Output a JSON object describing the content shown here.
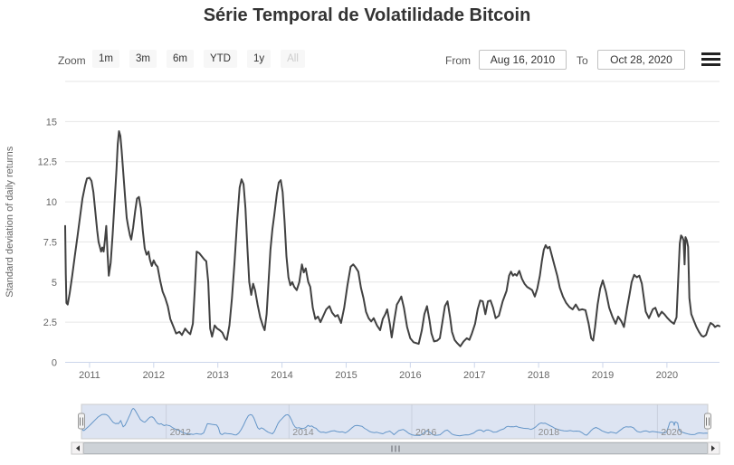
{
  "title": "Série Temporal de Volatilidade Bitcoin",
  "range_selector": {
    "zoom_label": "Zoom",
    "buttons": [
      {
        "label": "1m",
        "enabled": true
      },
      {
        "label": "3m",
        "enabled": true
      },
      {
        "label": "6m",
        "enabled": true
      },
      {
        "label": "YTD",
        "enabled": true
      },
      {
        "label": "1y",
        "enabled": true
      },
      {
        "label": "All",
        "enabled": false
      }
    ],
    "from_label": "From",
    "from_value": "Aug 16, 2010",
    "to_label": "To",
    "to_value": "Oct 28, 2020"
  },
  "menu_icon": "hamburger-menu",
  "colors": {
    "title": "#333333",
    "series_line": "#414141",
    "grid": "#e6e6e6",
    "axis_line": "#ccd6eb",
    "axis_label": "#666666",
    "navigator_line": "#6596c8",
    "navigator_mask": "rgba(102,133,194,0.22)",
    "navigator_outline": "#cccccc",
    "navigator_label": "#8c8c8c",
    "handle_fill": "#f2f2f2",
    "handle_stroke": "#999999",
    "scrollbar_thumb": "#cdd2d7",
    "scrollbar_thumb_border": "#b0b5ba",
    "scrollbar_button": "#f4f2f3",
    "scrollbar_button_border": "#c9c9c9",
    "scrollbar_arrow": "#333333",
    "button_bg": "#f7f7f7",
    "button_text": "#333333",
    "button_disabled_text": "#cccccc"
  },
  "chart_data": {
    "type": "line",
    "title": "Série Temporal de Volatilidade Bitcoin",
    "xlabel": "",
    "ylabel": "Standard deviation of daily returns",
    "ylim": [
      0,
      17.5
    ],
    "yticks": [
      0,
      2.5,
      5,
      7.5,
      10,
      12.5,
      15
    ],
    "xlim_years": [
      2010.62,
      2020.82
    ],
    "xticks_years": [
      2011,
      2012,
      2013,
      2014,
      2015,
      2016,
      2017,
      2018,
      2019,
      2020
    ],
    "x_range_dates": [
      "Aug 16, 2010",
      "Oct 28, 2020"
    ],
    "grid": "horizontal",
    "legend": "none",
    "navigator_ticks": [
      2012,
      2014,
      2016,
      2018,
      2020
    ],
    "points": [
      [
        2010.62,
        8.5
      ],
      [
        2010.63,
        5.5
      ],
      [
        2010.64,
        3.7
      ],
      [
        2010.66,
        3.6
      ],
      [
        2010.69,
        4.3
      ],
      [
        2010.73,
        5.4
      ],
      [
        2010.77,
        6.6
      ],
      [
        2010.81,
        7.8
      ],
      [
        2010.85,
        9.0
      ],
      [
        2010.89,
        10.2
      ],
      [
        2010.93,
        11.0
      ],
      [
        2010.96,
        11.45
      ],
      [
        2011.0,
        11.5
      ],
      [
        2011.03,
        11.3
      ],
      [
        2011.06,
        10.6
      ],
      [
        2011.09,
        9.4
      ],
      [
        2011.12,
        8.2
      ],
      [
        2011.14,
        7.5
      ],
      [
        2011.16,
        7.2
      ],
      [
        2011.18,
        6.9
      ],
      [
        2011.2,
        7.15
      ],
      [
        2011.22,
        6.9
      ],
      [
        2011.24,
        7.6
      ],
      [
        2011.26,
        8.5
      ],
      [
        2011.28,
        6.8
      ],
      [
        2011.3,
        5.4
      ],
      [
        2011.33,
        6.2
      ],
      [
        2011.36,
        8.0
      ],
      [
        2011.39,
        10.0
      ],
      [
        2011.42,
        12.0
      ],
      [
        2011.44,
        13.6
      ],
      [
        2011.46,
        14.4
      ],
      [
        2011.48,
        14.1
      ],
      [
        2011.5,
        13.2
      ],
      [
        2011.53,
        11.6
      ],
      [
        2011.56,
        10.0
      ],
      [
        2011.58,
        9.0
      ],
      [
        2011.6,
        8.5
      ],
      [
        2011.63,
        7.9
      ],
      [
        2011.65,
        7.65
      ],
      [
        2011.68,
        8.4
      ],
      [
        2011.71,
        9.4
      ],
      [
        2011.74,
        10.2
      ],
      [
        2011.77,
        10.3
      ],
      [
        2011.8,
        9.6
      ],
      [
        2011.83,
        8.2
      ],
      [
        2011.86,
        7.1
      ],
      [
        2011.89,
        6.7
      ],
      [
        2011.92,
        6.9
      ],
      [
        2011.94,
        6.4
      ],
      [
        2011.97,
        6.0
      ],
      [
        2012.0,
        6.35
      ],
      [
        2012.03,
        6.1
      ],
      [
        2012.06,
        5.95
      ],
      [
        2012.1,
        5.1
      ],
      [
        2012.14,
        4.4
      ],
      [
        2012.18,
        4.0
      ],
      [
        2012.22,
        3.5
      ],
      [
        2012.26,
        2.7
      ],
      [
        2012.31,
        2.2
      ],
      [
        2012.35,
        1.8
      ],
      [
        2012.4,
        1.9
      ],
      [
        2012.44,
        1.7
      ],
      [
        2012.49,
        2.1
      ],
      [
        2012.53,
        1.9
      ],
      [
        2012.57,
        1.75
      ],
      [
        2012.61,
        2.4
      ],
      [
        2012.64,
        4.5
      ],
      [
        2012.67,
        6.9
      ],
      [
        2012.71,
        6.8
      ],
      [
        2012.75,
        6.6
      ],
      [
        2012.79,
        6.4
      ],
      [
        2012.82,
        6.3
      ],
      [
        2012.85,
        5.0
      ],
      [
        2012.88,
        2.1
      ],
      [
        2012.91,
        1.6
      ],
      [
        2012.95,
        2.3
      ],
      [
        2012.99,
        2.1
      ],
      [
        2013.03,
        2.0
      ],
      [
        2013.07,
        1.85
      ],
      [
        2013.11,
        1.5
      ],
      [
        2013.14,
        1.4
      ],
      [
        2013.18,
        2.3
      ],
      [
        2013.22,
        4.0
      ],
      [
        2013.26,
        6.2
      ],
      [
        2013.3,
        8.8
      ],
      [
        2013.34,
        10.9
      ],
      [
        2013.37,
        11.4
      ],
      [
        2013.4,
        11.1
      ],
      [
        2013.43,
        9.6
      ],
      [
        2013.46,
        7.2
      ],
      [
        2013.49,
        5.0
      ],
      [
        2013.52,
        4.2
      ],
      [
        2013.55,
        4.9
      ],
      [
        2013.58,
        4.5
      ],
      [
        2013.62,
        3.6
      ],
      [
        2013.66,
        2.8
      ],
      [
        2013.7,
        2.3
      ],
      [
        2013.73,
        2.0
      ],
      [
        2013.76,
        3.0
      ],
      [
        2013.79,
        5.0
      ],
      [
        2013.82,
        7.0
      ],
      [
        2013.85,
        8.3
      ],
      [
        2013.88,
        9.2
      ],
      [
        2013.92,
        10.5
      ],
      [
        2013.95,
        11.2
      ],
      [
        2013.98,
        11.35
      ],
      [
        2014.01,
        10.6
      ],
      [
        2014.04,
        8.8
      ],
      [
        2014.07,
        6.6
      ],
      [
        2014.1,
        5.3
      ],
      [
        2014.13,
        4.8
      ],
      [
        2014.16,
        5.0
      ],
      [
        2014.19,
        4.7
      ],
      [
        2014.23,
        4.5
      ],
      [
        2014.27,
        5.0
      ],
      [
        2014.31,
        6.1
      ],
      [
        2014.34,
        5.6
      ],
      [
        2014.37,
        5.85
      ],
      [
        2014.41,
        5.0
      ],
      [
        2014.44,
        4.7
      ],
      [
        2014.48,
        3.4
      ],
      [
        2014.52,
        2.7
      ],
      [
        2014.56,
        2.85
      ],
      [
        2014.6,
        2.5
      ],
      [
        2014.64,
        2.85
      ],
      [
        2014.69,
        3.3
      ],
      [
        2014.74,
        3.5
      ],
      [
        2014.78,
        3.1
      ],
      [
        2014.83,
        2.85
      ],
      [
        2014.87,
        2.95
      ],
      [
        2014.92,
        2.45
      ],
      [
        2014.97,
        3.4
      ],
      [
        2015.02,
        4.8
      ],
      [
        2015.07,
        5.95
      ],
      [
        2015.11,
        6.1
      ],
      [
        2015.15,
        5.9
      ],
      [
        2015.19,
        5.65
      ],
      [
        2015.23,
        4.65
      ],
      [
        2015.27,
        4.0
      ],
      [
        2015.31,
        3.15
      ],
      [
        2015.35,
        2.75
      ],
      [
        2015.39,
        2.55
      ],
      [
        2015.43,
        2.75
      ],
      [
        2015.48,
        2.3
      ],
      [
        2015.53,
        2.0
      ],
      [
        2015.57,
        2.7
      ],
      [
        2015.61,
        3.0
      ],
      [
        2015.64,
        3.3
      ],
      [
        2015.68,
        2.4
      ],
      [
        2015.71,
        1.55
      ],
      [
        2015.75,
        2.6
      ],
      [
        2015.79,
        3.6
      ],
      [
        2015.82,
        3.8
      ],
      [
        2015.86,
        4.1
      ],
      [
        2015.9,
        3.4
      ],
      [
        2015.95,
        2.2
      ],
      [
        2016.0,
        1.5
      ],
      [
        2016.05,
        1.25
      ],
      [
        2016.09,
        1.2
      ],
      [
        2016.13,
        1.15
      ],
      [
        2016.18,
        2.0
      ],
      [
        2016.22,
        3.0
      ],
      [
        2016.26,
        3.5
      ],
      [
        2016.3,
        2.6
      ],
      [
        2016.33,
        1.8
      ],
      [
        2016.37,
        1.3
      ],
      [
        2016.42,
        1.35
      ],
      [
        2016.46,
        1.5
      ],
      [
        2016.5,
        2.5
      ],
      [
        2016.54,
        3.5
      ],
      [
        2016.58,
        3.8
      ],
      [
        2016.62,
        2.8
      ],
      [
        2016.65,
        1.9
      ],
      [
        2016.69,
        1.4
      ],
      [
        2016.73,
        1.2
      ],
      [
        2016.78,
        1.0
      ],
      [
        2016.83,
        1.3
      ],
      [
        2016.88,
        1.5
      ],
      [
        2016.92,
        1.4
      ],
      [
        2016.96,
        1.8
      ],
      [
        2017.01,
        2.4
      ],
      [
        2017.05,
        3.3
      ],
      [
        2017.09,
        3.85
      ],
      [
        2017.13,
        3.8
      ],
      [
        2017.17,
        3.0
      ],
      [
        2017.21,
        3.8
      ],
      [
        2017.25,
        3.85
      ],
      [
        2017.29,
        3.4
      ],
      [
        2017.33,
        2.75
      ],
      [
        2017.38,
        2.9
      ],
      [
        2017.44,
        3.8
      ],
      [
        2017.5,
        4.45
      ],
      [
        2017.54,
        5.4
      ],
      [
        2017.57,
        5.65
      ],
      [
        2017.6,
        5.4
      ],
      [
        2017.63,
        5.5
      ],
      [
        2017.66,
        5.4
      ],
      [
        2017.7,
        5.7
      ],
      [
        2017.74,
        5.2
      ],
      [
        2017.78,
        4.9
      ],
      [
        2017.82,
        4.7
      ],
      [
        2017.86,
        4.6
      ],
      [
        2017.9,
        4.5
      ],
      [
        2017.94,
        4.1
      ],
      [
        2017.98,
        4.6
      ],
      [
        2018.02,
        5.4
      ],
      [
        2018.05,
        6.3
      ],
      [
        2018.08,
        7.0
      ],
      [
        2018.11,
        7.3
      ],
      [
        2018.14,
        7.1
      ],
      [
        2018.17,
        7.2
      ],
      [
        2018.21,
        6.6
      ],
      [
        2018.25,
        6.0
      ],
      [
        2018.29,
        5.4
      ],
      [
        2018.33,
        4.65
      ],
      [
        2018.38,
        4.1
      ],
      [
        2018.43,
        3.7
      ],
      [
        2018.48,
        3.45
      ],
      [
        2018.53,
        3.3
      ],
      [
        2018.58,
        3.6
      ],
      [
        2018.63,
        3.25
      ],
      [
        2018.68,
        3.3
      ],
      [
        2018.73,
        3.25
      ],
      [
        2018.78,
        2.4
      ],
      [
        2018.82,
        1.5
      ],
      [
        2018.85,
        1.35
      ],
      [
        2018.88,
        2.2
      ],
      [
        2018.92,
        3.6
      ],
      [
        2018.96,
        4.6
      ],
      [
        2019.0,
        5.1
      ],
      [
        2019.05,
        4.4
      ],
      [
        2019.1,
        3.4
      ],
      [
        2019.15,
        2.85
      ],
      [
        2019.2,
        2.4
      ],
      [
        2019.24,
        2.85
      ],
      [
        2019.29,
        2.55
      ],
      [
        2019.33,
        2.2
      ],
      [
        2019.38,
        3.4
      ],
      [
        2019.42,
        4.3
      ],
      [
        2019.45,
        5.0
      ],
      [
        2019.49,
        5.45
      ],
      [
        2019.53,
        5.3
      ],
      [
        2019.57,
        5.4
      ],
      [
        2019.61,
        4.9
      ],
      [
        2019.64,
        4.0
      ],
      [
        2019.67,
        3.15
      ],
      [
        2019.72,
        2.75
      ],
      [
        2019.78,
        3.3
      ],
      [
        2019.82,
        3.4
      ],
      [
        2019.87,
        2.85
      ],
      [
        2019.92,
        3.15
      ],
      [
        2019.96,
        3.0
      ],
      [
        2020.01,
        2.75
      ],
      [
        2020.06,
        2.55
      ],
      [
        2020.11,
        2.4
      ],
      [
        2020.15,
        2.8
      ],
      [
        2020.18,
        5.5
      ],
      [
        2020.2,
        7.4
      ],
      [
        2020.22,
        7.9
      ],
      [
        2020.24,
        7.8
      ],
      [
        2020.26,
        7.6
      ],
      [
        2020.275,
        6.1
      ],
      [
        2020.29,
        7.8
      ],
      [
        2020.31,
        7.6
      ],
      [
        2020.33,
        7.2
      ],
      [
        2020.35,
        4.0
      ],
      [
        2020.38,
        3.0
      ],
      [
        2020.42,
        2.6
      ],
      [
        2020.46,
        2.2
      ],
      [
        2020.5,
        1.9
      ],
      [
        2020.54,
        1.65
      ],
      [
        2020.57,
        1.6
      ],
      [
        2020.61,
        1.7
      ],
      [
        2020.65,
        2.2
      ],
      [
        2020.68,
        2.45
      ],
      [
        2020.72,
        2.35
      ],
      [
        2020.75,
        2.2
      ],
      [
        2020.79,
        2.3
      ],
      [
        2020.82,
        2.25
      ]
    ]
  }
}
